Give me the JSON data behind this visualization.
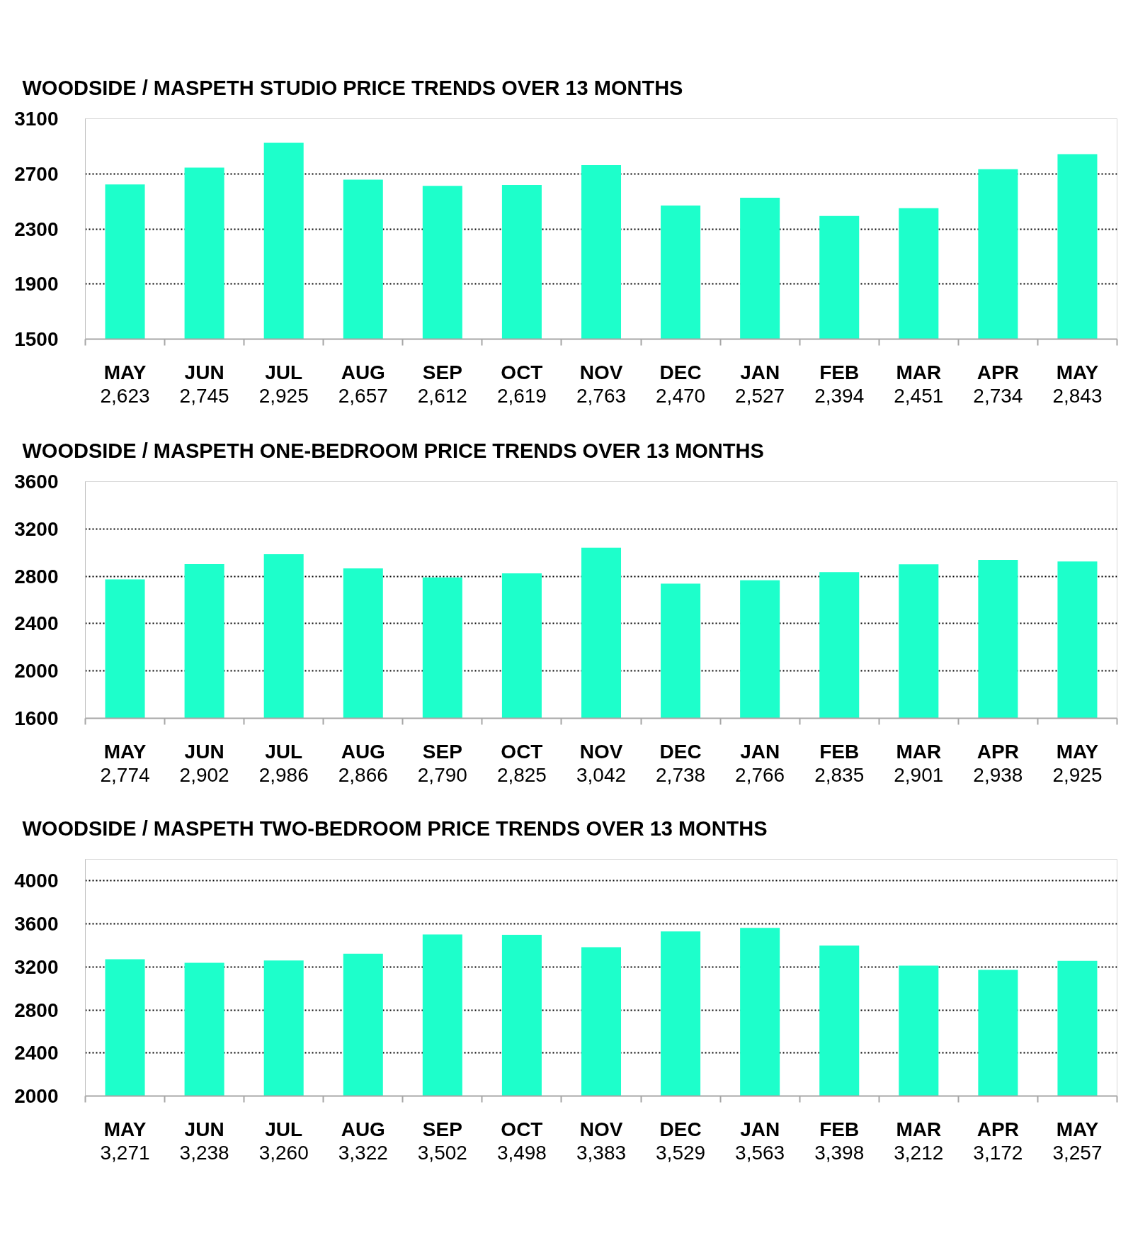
{
  "chart_data": [
    {
      "type": "bar",
      "title": "WOODSIDE / MASPETH STUDIO PRICE TRENDS OVER 13 MONTHS",
      "categories": [
        "MAY",
        "JUN",
        "JUL",
        "AUG",
        "SEP",
        "OCT",
        "NOV",
        "DEC",
        "JAN",
        "FEB",
        "MAR",
        "APR",
        "MAY"
      ],
      "values": [
        2623,
        2745,
        2925,
        2657,
        2612,
        2619,
        2763,
        2470,
        2527,
        2394,
        2451,
        2734,
        2843
      ],
      "value_labels": [
        "2,623",
        "2,745",
        "2,925",
        "2,657",
        "2,612",
        "2,619",
        "2,763",
        "2,470",
        "2,527",
        "2,394",
        "2,451",
        "2,734",
        "2,843"
      ],
      "color": "#1dffcb",
      "ylim": [
        1500,
        3100
      ],
      "yticks": [
        1500,
        1900,
        2300,
        2700,
        3100
      ],
      "grid": "y"
    },
    {
      "type": "bar",
      "title": "WOODSIDE / MASPETH ONE-BEDROOM PRICE TRENDS OVER 13 MONTHS",
      "categories": [
        "MAY",
        "JUN",
        "JUL",
        "AUG",
        "SEP",
        "OCT",
        "NOV",
        "DEC",
        "JAN",
        "FEB",
        "MAR",
        "APR",
        "MAY"
      ],
      "values": [
        2774,
        2902,
        2986,
        2866,
        2790,
        2825,
        3042,
        2738,
        2766,
        2835,
        2901,
        2938,
        2925
      ],
      "value_labels": [
        "2,774",
        "2,902",
        "2,986",
        "2,866",
        "2,790",
        "2,825",
        "3,042",
        "2,738",
        "2,766",
        "2,835",
        "2,901",
        "2,938",
        "2,925"
      ],
      "color": "#1dffcb",
      "ylim": [
        1600,
        3600
      ],
      "yticks": [
        1600,
        2000,
        2400,
        2800,
        3200,
        3600
      ],
      "grid": "y"
    },
    {
      "type": "bar",
      "title": "WOODSIDE / MASPETH TWO-BEDROOM PRICE TRENDS OVER 13 MONTHS",
      "categories": [
        "MAY",
        "JUN",
        "JUL",
        "AUG",
        "SEP",
        "OCT",
        "NOV",
        "DEC",
        "JAN",
        "FEB",
        "MAR",
        "APR",
        "MAY"
      ],
      "values": [
        3271,
        3238,
        3260,
        3322,
        3502,
        3498,
        3383,
        3529,
        3563,
        3398,
        3212,
        3172,
        3257
      ],
      "value_labels": [
        "3,271",
        "3,238",
        "3,260",
        "3,322",
        "3,502",
        "3,498",
        "3,383",
        "3,529",
        "3,563",
        "3,398",
        "3,212",
        "3,172",
        "3,257"
      ],
      "color": "#1dffcb",
      "ylim": [
        2000,
        4200
      ],
      "yticks": [
        2000,
        2400,
        2800,
        3200,
        3600,
        4000
      ],
      "grid": "y"
    }
  ]
}
